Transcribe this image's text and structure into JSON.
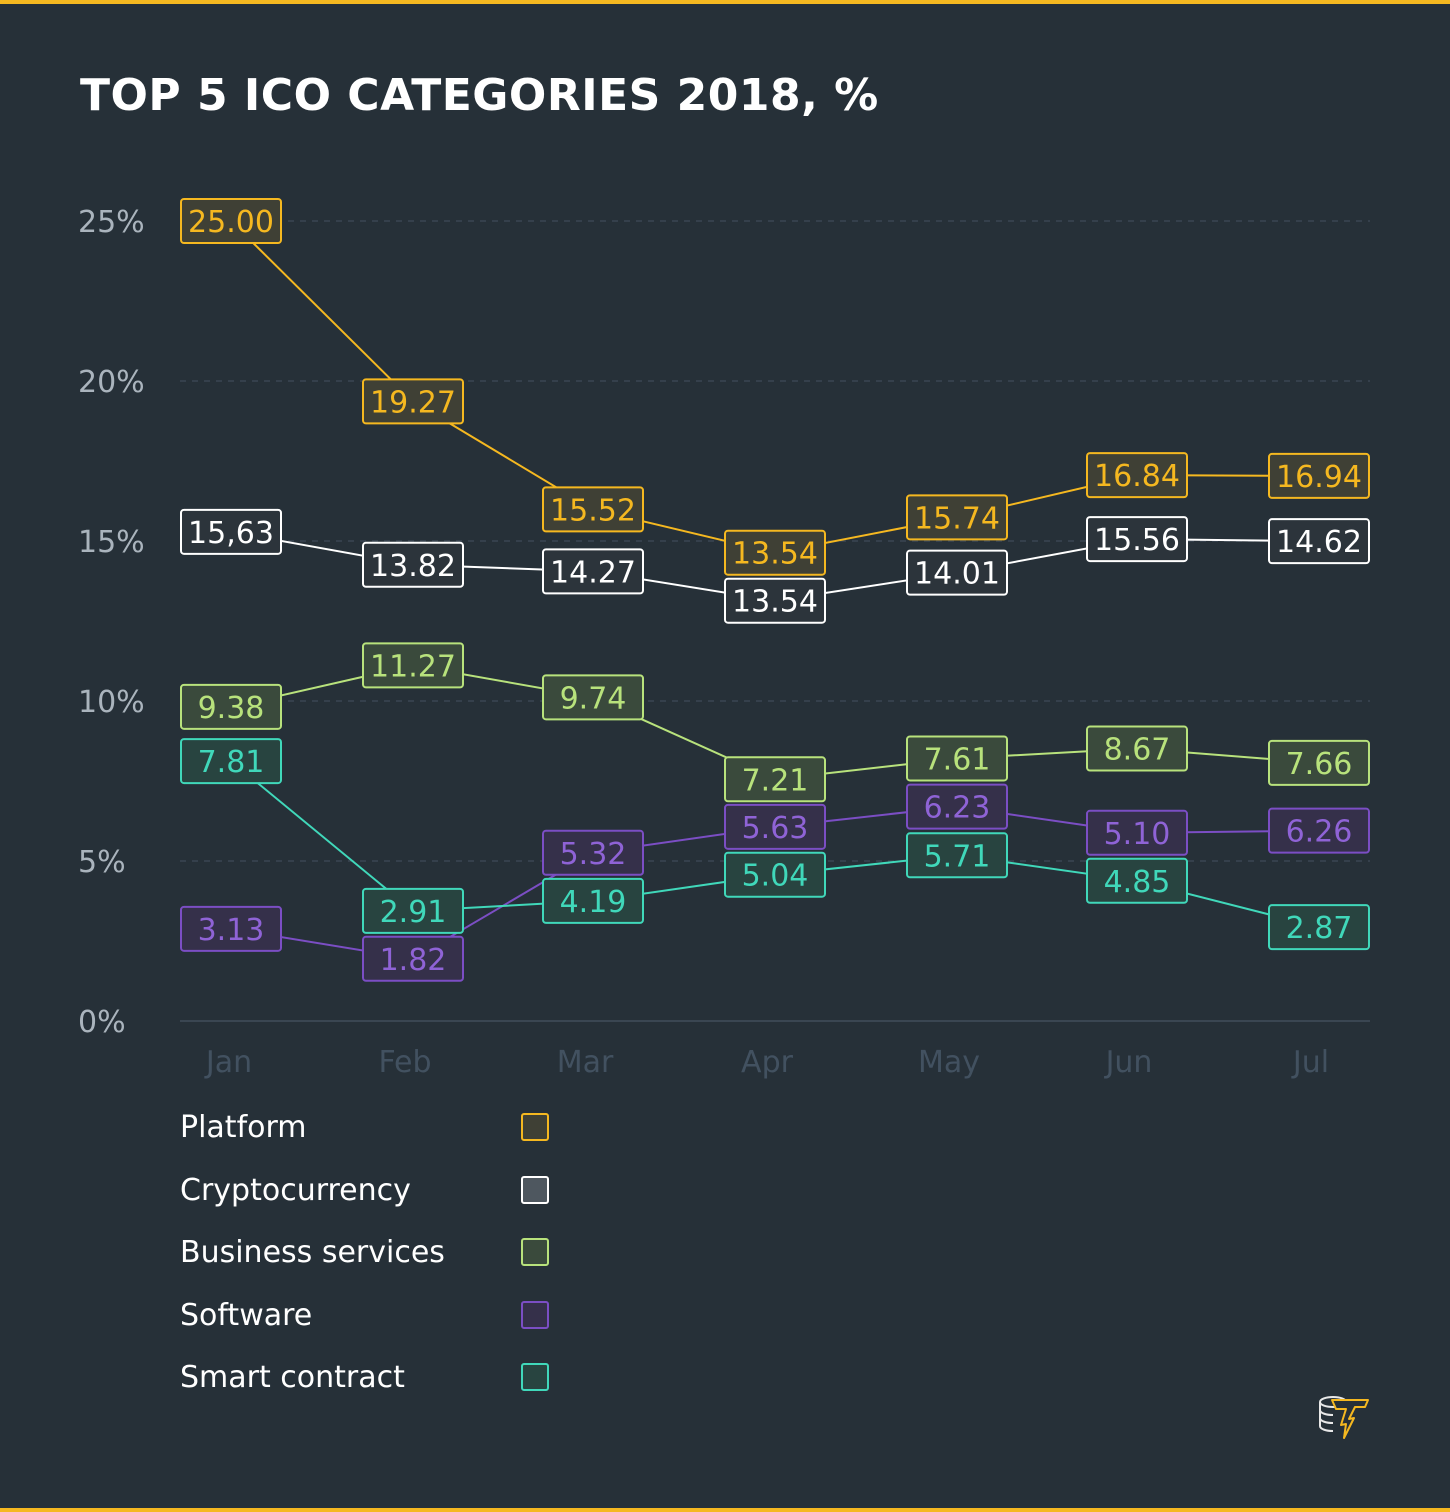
{
  "title": "TOP 5 ICO CATEGORIES 2018, %",
  "chart_data": {
    "type": "line",
    "title": "TOP 5 ICO CATEGORIES 2018, %",
    "categories": [
      "Jan",
      "Feb",
      "Mar",
      "Apr",
      "May",
      "Jun",
      "Jul"
    ],
    "yticks": [
      "0%",
      "5%",
      "10%",
      "15%",
      "20%",
      "25%"
    ],
    "ylim": [
      0,
      25
    ],
    "grid": true,
    "legend_position": "bottom-left",
    "series": [
      {
        "name": "Platform",
        "color": "#f5b820",
        "fill": "#3f4035",
        "values": [
          25.0,
          19.27,
          15.52,
          13.54,
          15.74,
          16.84,
          16.94
        ],
        "labels": [
          "25.00",
          "19.27",
          "15.52",
          "13.54",
          "15.74",
          "16.84",
          "16.94"
        ]
      },
      {
        "name": "Cryptocurrency",
        "color": "#ffffff",
        "fill": "#2c343b",
        "values": [
          15.63,
          13.82,
          14.27,
          13.54,
          14.01,
          15.56,
          14.62
        ],
        "labels": [
          "15,63",
          "13.82",
          "14.27",
          "13.54",
          "14.01",
          "15.56",
          "14.62"
        ]
      },
      {
        "name": "Business services",
        "color": "#b8e27c",
        "fill": "#3a4a3c",
        "values": [
          9.38,
          11.27,
          9.74,
          7.21,
          7.61,
          8.67,
          7.66
        ],
        "labels": [
          "9.38",
          "11.27",
          "9.74",
          "7.21",
          "7.61",
          "8.67",
          "7.66"
        ]
      },
      {
        "name": "Software",
        "color": "#7b4ec4",
        "text": "#8f63d6",
        "fill": "#35304a",
        "values": [
          3.13,
          1.82,
          5.32,
          5.63,
          6.23,
          5.1,
          6.26
        ],
        "labels": [
          "3.13",
          "1.82",
          "5.32",
          "5.63",
          "6.23",
          "5.10",
          "6.26"
        ]
      },
      {
        "name": "Smart contract",
        "color": "#40d8ba",
        "fill": "#284440",
        "values": [
          7.81,
          2.91,
          4.19,
          5.04,
          5.71,
          4.85,
          2.87
        ],
        "labels": [
          "7.81",
          "2.91",
          "4.19",
          "5.04",
          "5.71",
          "4.85",
          "2.87"
        ]
      }
    ]
  }
}
